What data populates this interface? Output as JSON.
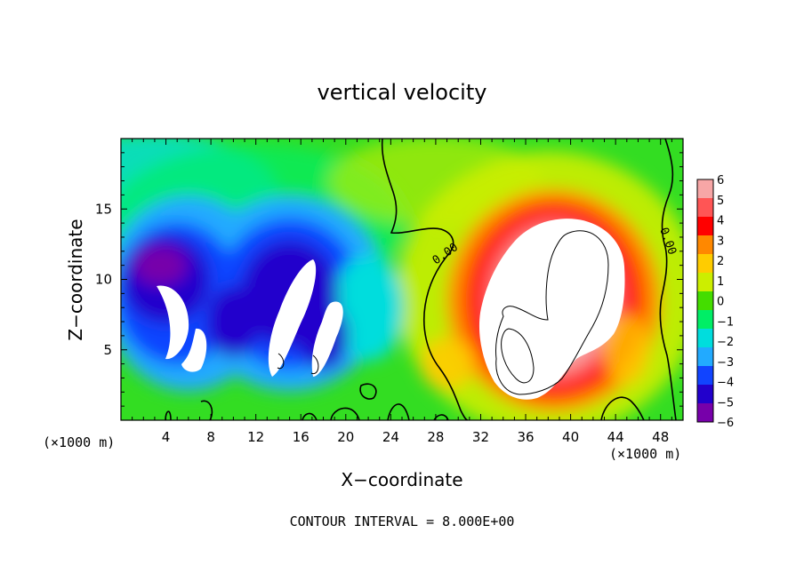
{
  "chart_data": {
    "type": "heatmap",
    "title": "vertical velocity",
    "xlabel": "X−coordinate",
    "ylabel": "Z−coordinate",
    "x_unit_label": "(×1000 m)",
    "x_unit_label_right": "(×1000 m)",
    "footer": "CONTOUR INTERVAL = 8.000E+00",
    "xlim": [
      0,
      50
    ],
    "ylim": [
      0,
      20
    ],
    "x_ticks": [
      4,
      8,
      12,
      16,
      20,
      24,
      28,
      32,
      36,
      40,
      44,
      48
    ],
    "y_ticks": [
      5,
      10,
      15
    ],
    "colorbar": {
      "range": [
        -6,
        6
      ],
      "labels": [
        "6",
        "5",
        "4",
        "3",
        "2",
        "1",
        "0",
        "−1",
        "−2",
        "−3",
        "−4",
        "−5",
        "−6"
      ],
      "colors": [
        "#f7a6a6",
        "#ff5555",
        "#ff0000",
        "#ff8800",
        "#ffcc00",
        "#ccee00",
        "#44dd00",
        "#00ee66",
        "#00dddd",
        "#22aaff",
        "#1144ff",
        "#2200cc",
        "#7700aa"
      ]
    },
    "contour_label": "0.00",
    "features": [
      {
        "kind": "downdraft",
        "x": 4.5,
        "z": 7.0,
        "value": -6
      },
      {
        "kind": "downdraft",
        "x": 7.5,
        "z": 10.5,
        "value": -5
      },
      {
        "kind": "downdraft",
        "x": 16.0,
        "z": 8.0,
        "value": -6
      },
      {
        "kind": "downdraft",
        "x": 14.0,
        "z": 11.0,
        "value": -5
      },
      {
        "kind": "downdraft",
        "x": 19.0,
        "z": 7.0,
        "value": -5
      },
      {
        "kind": "updraft",
        "x": 38.5,
        "z": 9.0,
        "value": 6
      },
      {
        "kind": "updraft",
        "x": 36.0,
        "z": 6.0,
        "value": 6
      },
      {
        "kind": "updraft",
        "x": 41.0,
        "z": 11.0,
        "value": 5
      }
    ]
  }
}
